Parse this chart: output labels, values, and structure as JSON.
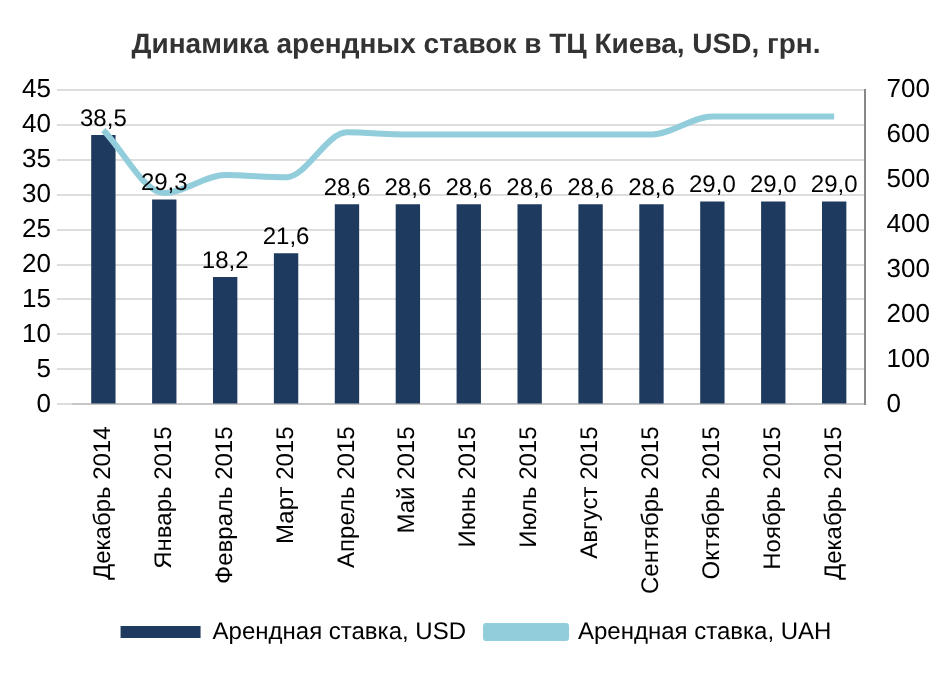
{
  "chart_data": {
    "type": "bar",
    "title": "Динамика арендных ставок в ТЦ Киева, USD, грн.",
    "categories": [
      "Декабрь 2014",
      "Январь 2015",
      "Февраль 2015",
      "Март 2015",
      "Апрель 2015",
      "Май 2015",
      "Июнь 2015",
      "Июль 2015",
      "Август 2015",
      "Сентябрь 2015",
      "Октябрь 2015",
      "Ноябрь 2015",
      "Декабрь 2015"
    ],
    "series": [
      {
        "name": "Арендная ставка, USD",
        "color": "#1f3a5f",
        "values": [
          38.5,
          29.3,
          18.2,
          21.6,
          28.6,
          28.6,
          28.6,
          28.6,
          28.6,
          28.6,
          29.0,
          29.0,
          29.0
        ],
        "value_labels": [
          "38,5",
          "29,3",
          "18,2",
          "21,6",
          "28,6",
          "28,6",
          "28,6",
          "28,6",
          "28,6",
          "28,6",
          "29,0",
          "29,0",
          "29,0"
        ]
      },
      {
        "name": "Арендная ставка, UAH",
        "type": "line",
        "axis": "y2",
        "color": "#92cddc",
        "values": [
          610,
          470,
          510,
          505,
          605,
          600,
          600,
          600,
          600,
          600,
          640,
          640,
          640
        ]
      }
    ],
    "ylim": [
      0,
      45
    ],
    "yticks": [
      0,
      5,
      10,
      15,
      20,
      25,
      30,
      35,
      40,
      45
    ],
    "y2lim": [
      0,
      700
    ],
    "y2ticks": [
      0,
      100,
      200,
      300,
      400,
      500,
      600,
      700
    ],
    "grid": "y",
    "legend": "bottom",
    "marker": "none",
    "line_style": "solid"
  }
}
